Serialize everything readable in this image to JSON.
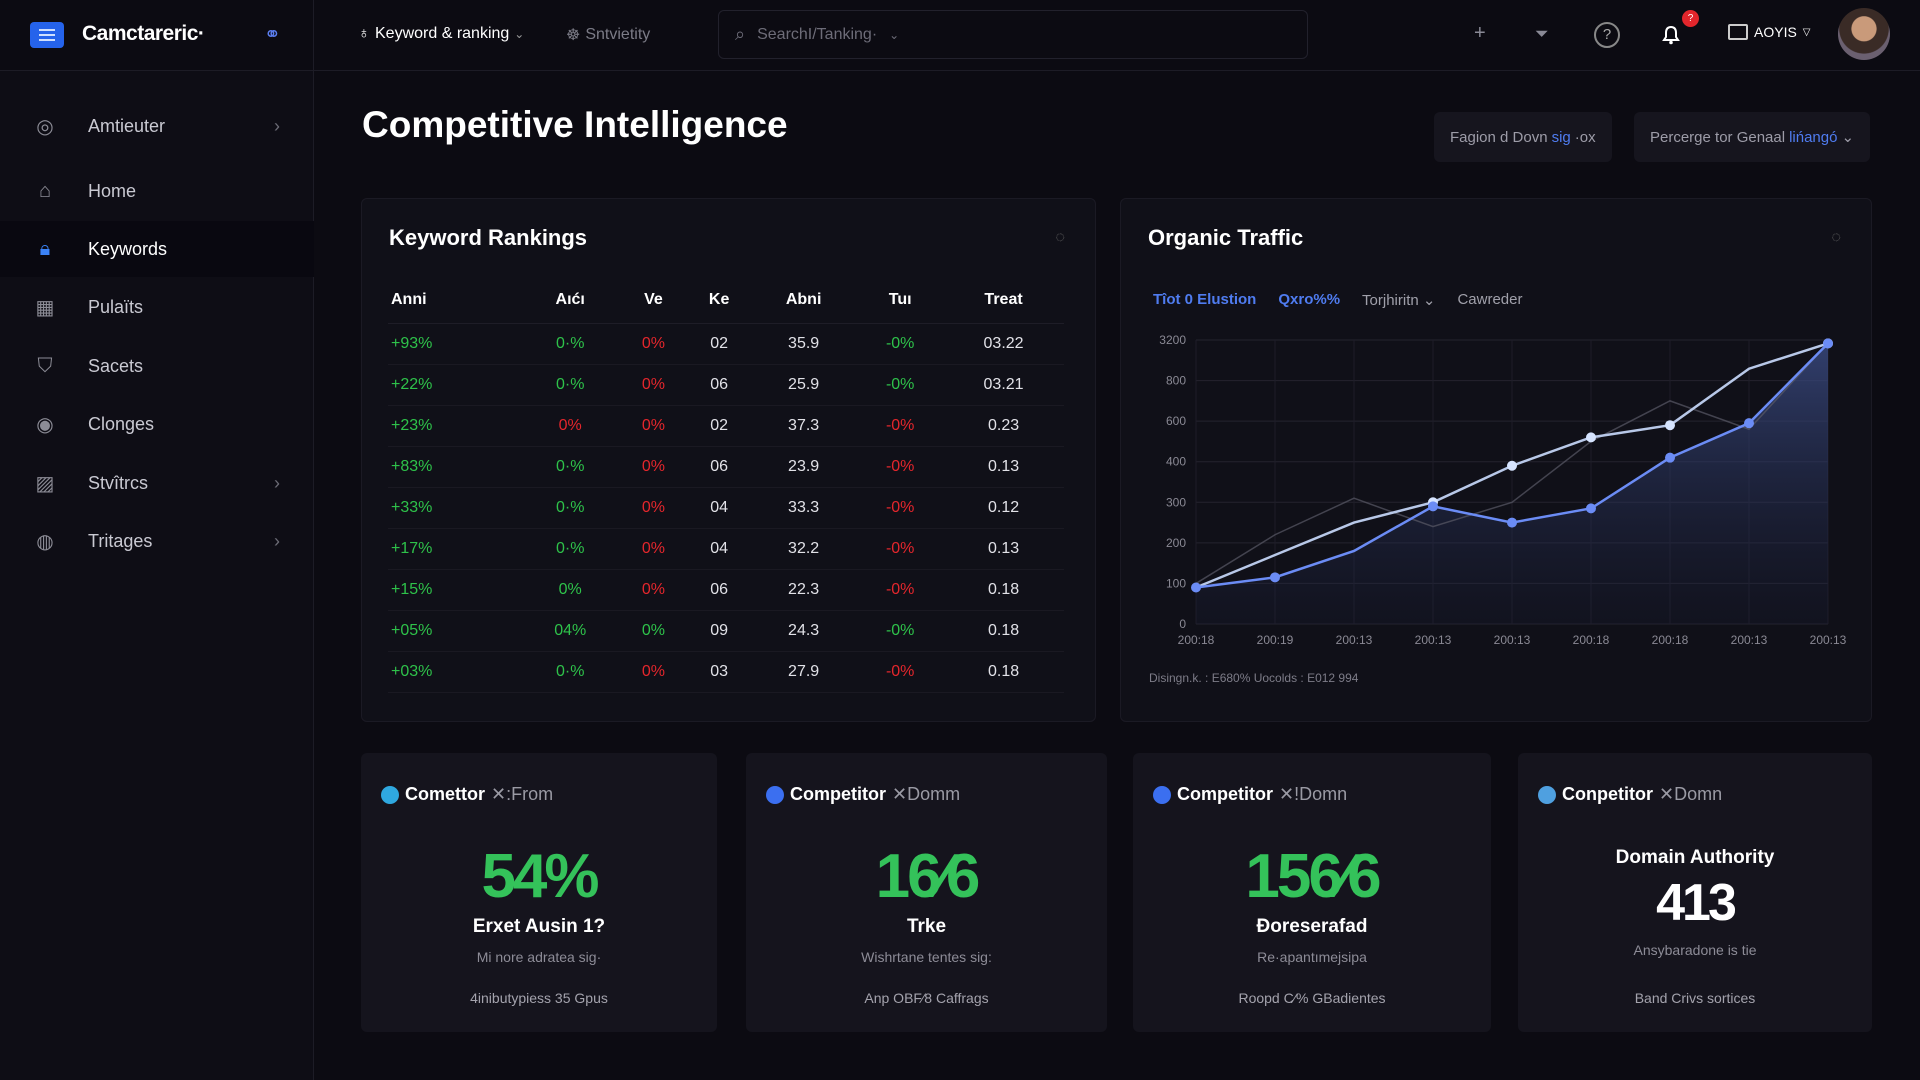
{
  "app": {
    "brand": "Camctareric·"
  },
  "topbar": {
    "tabs": [
      {
        "label": "Keyword & ranking",
        "icon": "bulb-icon"
      },
      {
        "label": "Sntvietity",
        "icon": "mask-icon"
      }
    ],
    "search_placeholder": "SearchI/Tanking·",
    "notification_count": "?",
    "workspace": "AOYIS"
  },
  "sidebar": {
    "items": [
      {
        "label": "Amtieuter",
        "icon": "gauge-icon",
        "chevron": true
      },
      {
        "label": "Home",
        "icon": "home-icon"
      },
      {
        "label": "Keywords",
        "icon": "lock-icon",
        "active": true
      },
      {
        "label": "Pulaïts",
        "icon": "calendar-icon"
      },
      {
        "label": "Sacets",
        "icon": "trash-icon"
      },
      {
        "label": "Clonges",
        "icon": "target-icon"
      },
      {
        "label": "Stvîtrcs",
        "icon": "image-icon",
        "chevron": true
      },
      {
        "label": "Tritages",
        "icon": "waveform-icon",
        "chevron": true
      }
    ]
  },
  "page": {
    "title": "Competitive Intelligence",
    "filters": [
      {
        "pre": "Fagion d Dovn",
        "hl": "sig",
        "post": "·ox"
      },
      {
        "pre": "Percerge tor Genaal",
        "hl": "lińangó",
        "post": "⌄"
      }
    ]
  },
  "rankings": {
    "title": "Keyword Rankings",
    "headers": [
      "Anni",
      "Aıćı",
      "Ve",
      "Ke",
      "Abni",
      "Tuı",
      "Treat"
    ],
    "rows": [
      [
        "+93%",
        "0·%",
        "0%",
        "02",
        "35.9",
        "-0%",
        "03.22"
      ],
      [
        "+22%",
        "0·%",
        "0%",
        "06",
        "25.9",
        "-0%",
        "03.21"
      ],
      [
        "+23%",
        "0%",
        "0%",
        "02",
        "37.3",
        "-0%",
        "0.23"
      ],
      [
        "+83%",
        "0·%",
        "0%",
        "06",
        "23.9",
        "-0%",
        "0.13"
      ],
      [
        "+33%",
        "0·%",
        "0%",
        "04",
        "33.3",
        "-0%",
        "0.12"
      ],
      [
        "+17%",
        "0·%",
        "0%",
        "04",
        "32.2",
        "-0%",
        "0.13"
      ],
      [
        "+15%",
        "0%",
        "0%",
        "06",
        "22.3",
        "-0%",
        "0.18"
      ],
      [
        "+05%",
        "04%",
        "0%",
        "09",
        "24.3",
        "-0%",
        "0.18"
      ],
      [
        "+03%",
        "0·%",
        "0%",
        "03",
        "27.9",
        "-0%",
        "0.18"
      ]
    ],
    "colors": [
      [
        "g",
        "g",
        "r",
        "",
        "",
        "g",
        ""
      ],
      [
        "g",
        "g",
        "r",
        "",
        "",
        "g",
        ""
      ],
      [
        "g",
        "r",
        "r",
        "",
        "",
        "r",
        ""
      ],
      [
        "g",
        "g",
        "r",
        "",
        "",
        "r",
        ""
      ],
      [
        "g",
        "g",
        "r",
        "",
        "",
        "r",
        ""
      ],
      [
        "g",
        "g",
        "r",
        "",
        "",
        "r",
        ""
      ],
      [
        "g",
        "g",
        "r",
        "",
        "",
        "r",
        ""
      ],
      [
        "g",
        "g",
        "g",
        "",
        "",
        "g",
        ""
      ],
      [
        "g",
        "g",
        "r",
        "",
        "",
        "r",
        ""
      ]
    ]
  },
  "traffic": {
    "title": "Organic Traffic",
    "legend": [
      {
        "label": "Tîot 0 Elustion",
        "color": "#4f7cf0"
      },
      {
        "label": "Qxro%%",
        "color": "#4f7cf0"
      },
      {
        "label": "Torjhiritn ⌄",
        "color": "#a0a0aa"
      },
      {
        "label": "Cawreder",
        "color": "#a0a0aa"
      }
    ],
    "footer": "Disingn.k. : E680% Uocolds : E012 994"
  },
  "chart_data": {
    "type": "line",
    "xlabel": "",
    "ylabel": "",
    "x": [
      "200:18",
      "200:19",
      "200:13",
      "200:13",
      "200:13",
      "200:18",
      "200:18",
      "200:13",
      "200:13"
    ],
    "yticks": [
      0,
      100,
      200,
      300,
      400,
      600,
      800,
      3200
    ],
    "series": [
      {
        "color": "#6b8cf5",
        "values": [
          90,
          115,
          180,
          290,
          250,
          285,
          420,
          590,
          3000
        ]
      },
      {
        "color": "#b8c8e8",
        "values": [
          90,
          170,
          250,
          300,
          390,
          520,
          580,
          1500,
          3000
        ]
      },
      {
        "color": "#5a5a66",
        "values": [
          100,
          220,
          310,
          240,
          300,
          500,
          700,
          560,
          3000
        ]
      }
    ],
    "grid": true
  },
  "cards": [
    {
      "title": "Comettor",
      "suffix": "✕:From",
      "icon": "teal-leaf-icon",
      "icon_color": "#2fa8e0",
      "value": "54%",
      "label": "Erxet Ausin 1?",
      "sub": "Mi nore adratea sig·",
      "footer": "4inibutypiess 35 Gpus"
    },
    {
      "title": "Competitor",
      "suffix": "✕Domm",
      "icon": "ring-icon",
      "icon_color": "#3b6ff0",
      "value": "16⁄6",
      "label": "Trke",
      "sub": "Wishrtane tentes sig:",
      "footer": "Anp OBF⁄8 Caffrags"
    },
    {
      "title": "Competitor",
      "suffix": "✕!Domn",
      "icon": "badge-icon",
      "icon_color": "#3b6ff0",
      "value": "156⁄6",
      "label": "Ɖoreserafad",
      "sub": "Re·apantımejsipa",
      "footer": "Roopd C⁄% GBadientes"
    },
    {
      "title": "Conpetitor",
      "suffix": "✕Domn",
      "icon": "cloud-icon",
      "icon_color": "#4fa0e0",
      "heading": "Domain Authority",
      "value": "413",
      "sub": "Ansybaradone is tie",
      "footer": "Band Crivs sortices"
    }
  ]
}
